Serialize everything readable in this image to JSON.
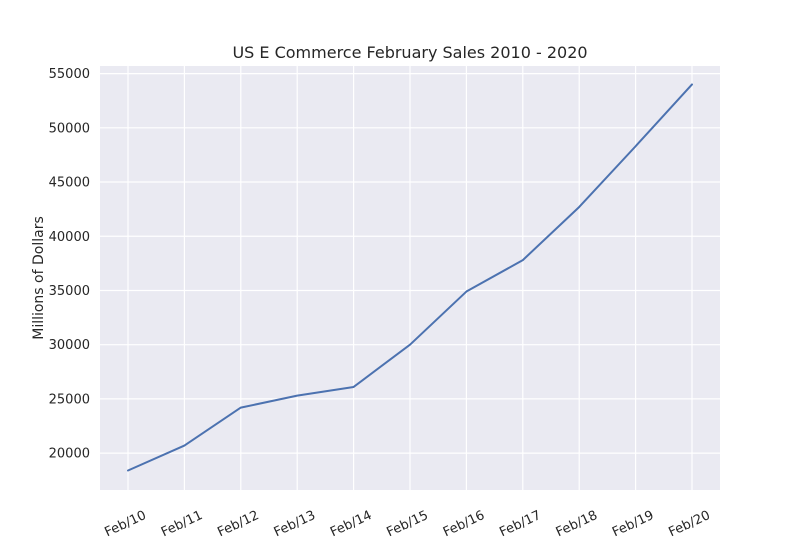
{
  "chart_data": {
    "type": "line",
    "title": "US E Commerce February Sales 2010 - 2020",
    "xlabel": "",
    "ylabel": "Millions of Dollars",
    "x": [
      "Feb/10",
      "Feb/11",
      "Feb/12",
      "Feb/13",
      "Feb/14",
      "Feb/15",
      "Feb/16",
      "Feb/17",
      "Feb/18",
      "Feb/19",
      "Feb/20"
    ],
    "series": [
      {
        "values": [
          18400,
          20700,
          24200,
          25300,
          26100,
          30000,
          34900,
          37800,
          42700,
          48300,
          54000
        ],
        "color": "#4c72b0"
      }
    ],
    "yticks": [
      20000,
      25000,
      30000,
      35000,
      40000,
      45000,
      50000,
      55000
    ],
    "ylim": [
      16600,
      55700
    ],
    "grid": true,
    "legend": "none",
    "background_color": "#eaeaf2",
    "grid_color": "#ffffff"
  }
}
